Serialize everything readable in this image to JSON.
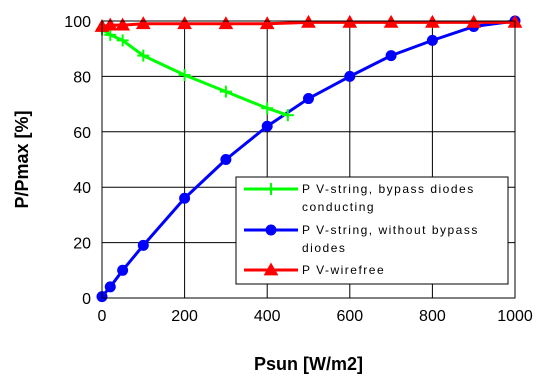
{
  "chart_data": {
    "type": "line",
    "xlabel": "Psun [W/m2]",
    "ylabel": "P/Pmax [%]",
    "xlim": [
      0,
      1000
    ],
    "ylim": [
      0,
      100
    ],
    "x_ticks": [
      "0",
      "200",
      "400",
      "600",
      "800",
      "1000"
    ],
    "y_ticks": [
      "0",
      "20",
      "40",
      "60",
      "80",
      "100"
    ],
    "grid": true,
    "legend_position": "lower-right",
    "series": [
      {
        "name_lines": [
          "P V-string, bypass diodes",
          "conducting"
        ],
        "color": "#00ff00",
        "marker": "plus",
        "x": [
          0,
          20,
          50,
          100,
          200,
          300,
          400,
          450
        ],
        "y": [
          97,
          95,
          93,
          87.5,
          80.5,
          74.5,
          68.5,
          66
        ]
      },
      {
        "name_lines": [
          "P V-string, without bypass",
          "diodes"
        ],
        "color": "#0000ff",
        "marker": "circle",
        "x": [
          0,
          20,
          50,
          100,
          200,
          300,
          400,
          500,
          600,
          700,
          800,
          900,
          1000
        ],
        "y": [
          0.5,
          4,
          10,
          19,
          36,
          50,
          62,
          72,
          80,
          87.5,
          93,
          98,
          100
        ]
      },
      {
        "name_lines": [
          "P V-wirefree"
        ],
        "color": "#ff0000",
        "marker": "triangle",
        "x": [
          0,
          20,
          50,
          100,
          200,
          300,
          400,
          500,
          600,
          700,
          800,
          900,
          1000
        ],
        "y": [
          98,
          98.5,
          98.5,
          99,
          99,
          99,
          99,
          99.5,
          99.5,
          99.5,
          99.5,
          99.5,
          99.5
        ]
      }
    ]
  }
}
